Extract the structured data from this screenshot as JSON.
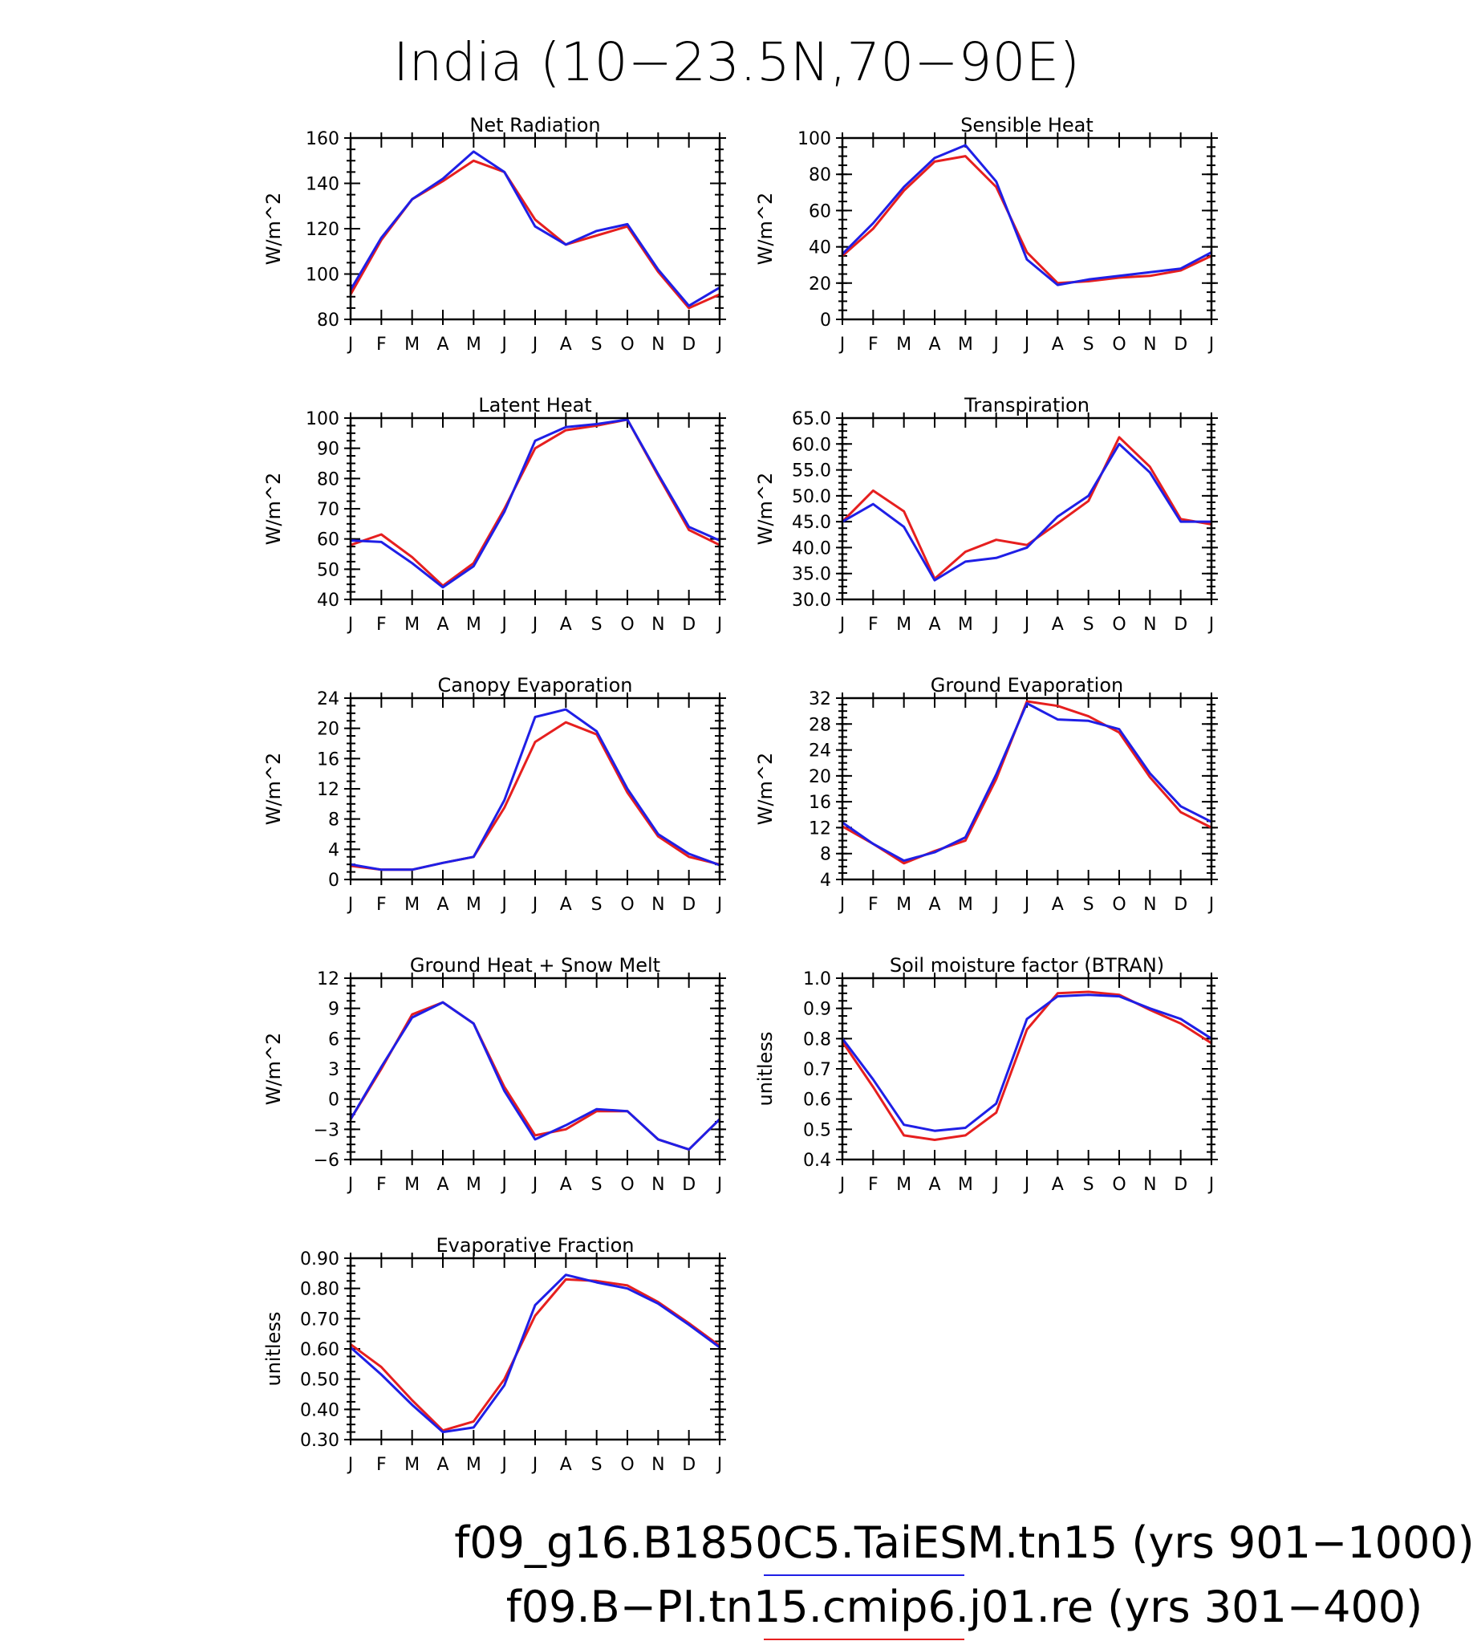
{
  "figure": {
    "title": "India (10−23.5N,70−90E)",
    "legend": [
      {
        "label": "f09_g16.B1850C5.TaiESM.tn15 (yrs 901−1000)",
        "color": "#1f1fe6"
      },
      {
        "label": "f09.B−PI.tn15.cmip6.j01.re (yrs 301−400)",
        "color": "#e61f1f"
      }
    ]
  },
  "chart_data": [
    {
      "type": "line",
      "title": "Net Radiation",
      "ylabel": "W/m^2",
      "x": [
        "J",
        "F",
        "M",
        "A",
        "M",
        "J",
        "J",
        "A",
        "S",
        "O",
        "N",
        "D",
        "J"
      ],
      "ylim": [
        80,
        160
      ],
      "yticks": [
        80,
        100,
        120,
        140,
        160
      ],
      "tick_decimals": 0,
      "series": [
        {
          "color": "#e61f1f",
          "values": [
            91,
            115,
            133,
            141,
            150,
            145,
            124,
            113,
            117,
            121,
            101,
            85,
            91
          ]
        },
        {
          "color": "#1f1fe6",
          "values": [
            93,
            116,
            133,
            142,
            154,
            145,
            121,
            113,
            119,
            122,
            102,
            86,
            94
          ]
        }
      ]
    },
    {
      "type": "line",
      "title": "Sensible Heat",
      "ylabel": "W/m^2",
      "x": [
        "J",
        "F",
        "M",
        "A",
        "M",
        "J",
        "J",
        "A",
        "S",
        "O",
        "N",
        "D",
        "J"
      ],
      "ylim": [
        0,
        100
      ],
      "yticks": [
        0,
        20,
        40,
        60,
        80,
        100
      ],
      "tick_decimals": 0,
      "series": [
        {
          "color": "#e61f1f",
          "values": [
            35,
            50,
            71,
            87,
            90,
            73,
            37,
            20,
            21,
            23,
            24,
            27,
            35
          ]
        },
        {
          "color": "#1f1fe6",
          "values": [
            36,
            53,
            73,
            89,
            96,
            76,
            33,
            19,
            22,
            24,
            26,
            28,
            37
          ]
        }
      ]
    },
    {
      "type": "line",
      "title": "Latent Heat",
      "ylabel": "W/m^2",
      "x": [
        "J",
        "F",
        "M",
        "A",
        "M",
        "J",
        "J",
        "A",
        "S",
        "O",
        "N",
        "D",
        "J"
      ],
      "ylim": [
        40,
        100
      ],
      "yticks": [
        40,
        50,
        60,
        70,
        80,
        90,
        100
      ],
      "tick_decimals": 0,
      "series": [
        {
          "color": "#e61f1f",
          "values": [
            58,
            61.5,
            54,
            44.5,
            52,
            70,
            90,
            96,
            97.5,
            99.5,
            81,
            63,
            58
          ]
        },
        {
          "color": "#1f1fe6",
          "values": [
            59.5,
            59,
            52,
            44,
            51,
            69,
            92.5,
            97,
            98,
            99.5,
            81.5,
            64,
            59.5
          ]
        }
      ]
    },
    {
      "type": "line",
      "title": "Transpiration",
      "ylabel": "W/m^2",
      "x": [
        "J",
        "F",
        "M",
        "A",
        "M",
        "J",
        "J",
        "A",
        "S",
        "O",
        "N",
        "D",
        "J"
      ],
      "ylim": [
        30,
        65
      ],
      "yticks": [
        30,
        35,
        40,
        45,
        50,
        55,
        60,
        65
      ],
      "tick_decimals": 1,
      "series": [
        {
          "color": "#e61f1f",
          "values": [
            45,
            51,
            47,
            34,
            39.2,
            41.5,
            40.5,
            44.7,
            49,
            61.3,
            55.6,
            45.5,
            44.5
          ]
        },
        {
          "color": "#1f1fe6",
          "values": [
            45,
            48.4,
            44,
            33.7,
            37.3,
            38,
            40,
            46,
            50,
            60,
            54.5,
            45,
            45
          ]
        }
      ]
    },
    {
      "type": "line",
      "title": "Canopy Evaporation",
      "ylabel": "W/m^2",
      "x": [
        "J",
        "F",
        "M",
        "A",
        "M",
        "J",
        "J",
        "A",
        "S",
        "O",
        "N",
        "D",
        "J"
      ],
      "ylim": [
        0,
        24
      ],
      "yticks": [
        0,
        4,
        8,
        12,
        16,
        20,
        24
      ],
      "tick_decimals": 0,
      "series": [
        {
          "color": "#e61f1f",
          "values": [
            1.8,
            1.3,
            1.3,
            2.2,
            3,
            9.5,
            18.2,
            20.8,
            19.2,
            11.5,
            5.7,
            3,
            2
          ]
        },
        {
          "color": "#1f1fe6",
          "values": [
            2,
            1.3,
            1.3,
            2.2,
            3,
            10.5,
            21.5,
            22.5,
            19.6,
            12,
            6,
            3.4,
            1.9
          ]
        }
      ]
    },
    {
      "type": "line",
      "title": "Ground Evaporation",
      "ylabel": "W/m^2",
      "x": [
        "J",
        "F",
        "M",
        "A",
        "M",
        "J",
        "J",
        "A",
        "S",
        "O",
        "N",
        "D",
        "J"
      ],
      "ylim": [
        4,
        32
      ],
      "yticks": [
        4,
        8,
        12,
        16,
        20,
        24,
        28,
        32
      ],
      "tick_decimals": 0,
      "series": [
        {
          "color": "#e61f1f",
          "values": [
            12.2,
            9.5,
            6.5,
            8.4,
            10,
            19.5,
            31.5,
            30.8,
            29.2,
            26.7,
            19.8,
            14.4,
            12
          ]
        },
        {
          "color": "#1f1fe6",
          "values": [
            12.8,
            9.5,
            6.9,
            8.2,
            10.5,
            20.2,
            31.2,
            28.7,
            28.5,
            27.2,
            20.4,
            15.3,
            12.9
          ]
        }
      ]
    },
    {
      "type": "line",
      "title": "Ground Heat + Snow Melt",
      "ylabel": "W/m^2",
      "x": [
        "J",
        "F",
        "M",
        "A",
        "M",
        "J",
        "J",
        "A",
        "S",
        "O",
        "N",
        "D",
        "J"
      ],
      "ylim": [
        -6,
        12
      ],
      "yticks": [
        -6,
        -3,
        0,
        3,
        6,
        9,
        12
      ],
      "tick_decimals": 0,
      "series": [
        {
          "color": "#e61f1f",
          "values": [
            -2,
            3,
            8.4,
            9.6,
            7.5,
            1.2,
            -3.6,
            -3,
            -1.2,
            -1.2,
            -4,
            -5,
            -2
          ]
        },
        {
          "color": "#1f1fe6",
          "values": [
            -2,
            3.2,
            8.1,
            9.6,
            7.5,
            0.8,
            -4,
            -2.6,
            -1,
            -1.2,
            -4,
            -5,
            -2
          ]
        }
      ]
    },
    {
      "type": "line",
      "title": "Soil moisture factor (BTRAN)",
      "ylabel": "unitless",
      "x": [
        "J",
        "F",
        "M",
        "A",
        "M",
        "J",
        "J",
        "A",
        "S",
        "O",
        "N",
        "D",
        "J"
      ],
      "ylim": [
        0.4,
        1.0
      ],
      "yticks": [
        0.4,
        0.5,
        0.6,
        0.7,
        0.8,
        0.9,
        1.0
      ],
      "tick_decimals": 1,
      "series": [
        {
          "color": "#e61f1f",
          "values": [
            0.79,
            0.64,
            0.48,
            0.465,
            0.48,
            0.555,
            0.83,
            0.95,
            0.955,
            0.945,
            0.895,
            0.85,
            0.785
          ]
        },
        {
          "color": "#1f1fe6",
          "values": [
            0.8,
            0.665,
            0.515,
            0.495,
            0.505,
            0.585,
            0.865,
            0.94,
            0.945,
            0.94,
            0.9,
            0.865,
            0.8
          ]
        }
      ]
    },
    {
      "type": "line",
      "title": "Evaporative Fraction",
      "ylabel": "unitless",
      "x": [
        "J",
        "F",
        "M",
        "A",
        "M",
        "J",
        "J",
        "A",
        "S",
        "O",
        "N",
        "D",
        "J"
      ],
      "ylim": [
        0.3,
        0.9
      ],
      "yticks": [
        0.3,
        0.4,
        0.5,
        0.6,
        0.7,
        0.8,
        0.9
      ],
      "tick_decimals": 2,
      "series": [
        {
          "color": "#e61f1f",
          "values": [
            0.615,
            0.54,
            0.43,
            0.33,
            0.36,
            0.5,
            0.71,
            0.83,
            0.825,
            0.81,
            0.755,
            0.685,
            0.61
          ]
        },
        {
          "color": "#1f1fe6",
          "values": [
            0.605,
            0.515,
            0.415,
            0.325,
            0.34,
            0.48,
            0.745,
            0.845,
            0.82,
            0.8,
            0.75,
            0.68,
            0.605
          ]
        }
      ]
    }
  ]
}
